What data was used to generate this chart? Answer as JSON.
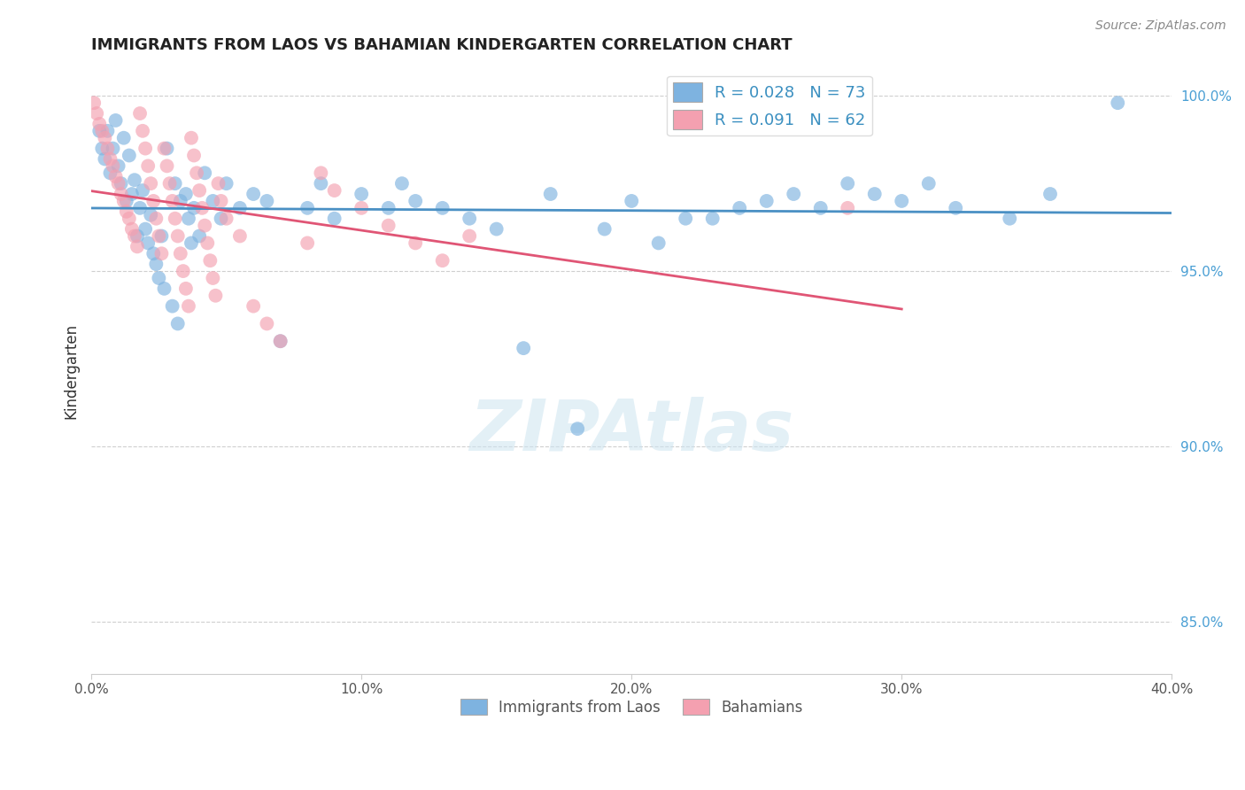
{
  "title": "IMMIGRANTS FROM LAOS VS BAHAMIAN KINDERGARTEN CORRELATION CHART",
  "source_text": "Source: ZipAtlas.com",
  "ylabel": "Kindergarten",
  "xlim": [
    0.0,
    0.4
  ],
  "ylim": [
    0.835,
    1.008
  ],
  "xticks": [
    0.0,
    0.1,
    0.2,
    0.3,
    0.4
  ],
  "xtick_labels": [
    "0.0%",
    "10.0%",
    "20.0%",
    "30.0%",
    "40.0%"
  ],
  "yticks": [
    0.85,
    0.9,
    0.95,
    1.0
  ],
  "ytick_labels": [
    "85.0%",
    "90.0%",
    "95.0%",
    "100.0%"
  ],
  "legend_R1": "0.028",
  "legend_N1": "73",
  "legend_R2": "0.091",
  "legend_N2": "62",
  "color_blue": "#7eb3e0",
  "color_pink": "#f4a0b0",
  "color_blue_line": "#4a90c4",
  "color_pink_line": "#e05575",
  "watermark": "ZIPAtlas",
  "blue_scatter_x": [
    0.003,
    0.004,
    0.005,
    0.006,
    0.007,
    0.008,
    0.009,
    0.01,
    0.011,
    0.012,
    0.013,
    0.014,
    0.015,
    0.016,
    0.017,
    0.018,
    0.019,
    0.02,
    0.021,
    0.022,
    0.023,
    0.024,
    0.025,
    0.026,
    0.027,
    0.028,
    0.03,
    0.031,
    0.032,
    0.033,
    0.035,
    0.036,
    0.037,
    0.038,
    0.04,
    0.042,
    0.045,
    0.048,
    0.05,
    0.055,
    0.06,
    0.065,
    0.07,
    0.08,
    0.085,
    0.09,
    0.1,
    0.11,
    0.115,
    0.12,
    0.13,
    0.14,
    0.15,
    0.16,
    0.17,
    0.18,
    0.2,
    0.22,
    0.24,
    0.26,
    0.28,
    0.3,
    0.32,
    0.34,
    0.355,
    0.19,
    0.21,
    0.23,
    0.25,
    0.27,
    0.29,
    0.31,
    0.38
  ],
  "blue_scatter_y": [
    0.99,
    0.985,
    0.982,
    0.99,
    0.978,
    0.985,
    0.993,
    0.98,
    0.975,
    0.988,
    0.97,
    0.983,
    0.972,
    0.976,
    0.96,
    0.968,
    0.973,
    0.962,
    0.958,
    0.966,
    0.955,
    0.952,
    0.948,
    0.96,
    0.945,
    0.985,
    0.94,
    0.975,
    0.935,
    0.97,
    0.972,
    0.965,
    0.958,
    0.968,
    0.96,
    0.978,
    0.97,
    0.965,
    0.975,
    0.968,
    0.972,
    0.97,
    0.93,
    0.968,
    0.975,
    0.965,
    0.972,
    0.968,
    0.975,
    0.97,
    0.968,
    0.965,
    0.962,
    0.928,
    0.972,
    0.905,
    0.97,
    0.965,
    0.968,
    0.972,
    0.975,
    0.97,
    0.968,
    0.965,
    0.972,
    0.962,
    0.958,
    0.965,
    0.97,
    0.968,
    0.972,
    0.975,
    0.998
  ],
  "pink_scatter_x": [
    0.001,
    0.002,
    0.003,
    0.004,
    0.005,
    0.006,
    0.007,
    0.008,
    0.009,
    0.01,
    0.011,
    0.012,
    0.013,
    0.014,
    0.015,
    0.016,
    0.017,
    0.018,
    0.019,
    0.02,
    0.021,
    0.022,
    0.023,
    0.024,
    0.025,
    0.026,
    0.027,
    0.028,
    0.029,
    0.03,
    0.031,
    0.032,
    0.033,
    0.034,
    0.035,
    0.036,
    0.037,
    0.038,
    0.039,
    0.04,
    0.041,
    0.042,
    0.043,
    0.044,
    0.045,
    0.046,
    0.047,
    0.048,
    0.05,
    0.055,
    0.06,
    0.065,
    0.07,
    0.08,
    0.085,
    0.09,
    0.1,
    0.11,
    0.12,
    0.13,
    0.14,
    0.28
  ],
  "pink_scatter_y": [
    0.998,
    0.995,
    0.992,
    0.99,
    0.988,
    0.985,
    0.982,
    0.98,
    0.977,
    0.975,
    0.972,
    0.97,
    0.967,
    0.965,
    0.962,
    0.96,
    0.957,
    0.995,
    0.99,
    0.985,
    0.98,
    0.975,
    0.97,
    0.965,
    0.96,
    0.955,
    0.985,
    0.98,
    0.975,
    0.97,
    0.965,
    0.96,
    0.955,
    0.95,
    0.945,
    0.94,
    0.988,
    0.983,
    0.978,
    0.973,
    0.968,
    0.963,
    0.958,
    0.953,
    0.948,
    0.943,
    0.975,
    0.97,
    0.965,
    0.96,
    0.94,
    0.935,
    0.93,
    0.958,
    0.978,
    0.973,
    0.968,
    0.963,
    0.958,
    0.953,
    0.96,
    0.968
  ]
}
